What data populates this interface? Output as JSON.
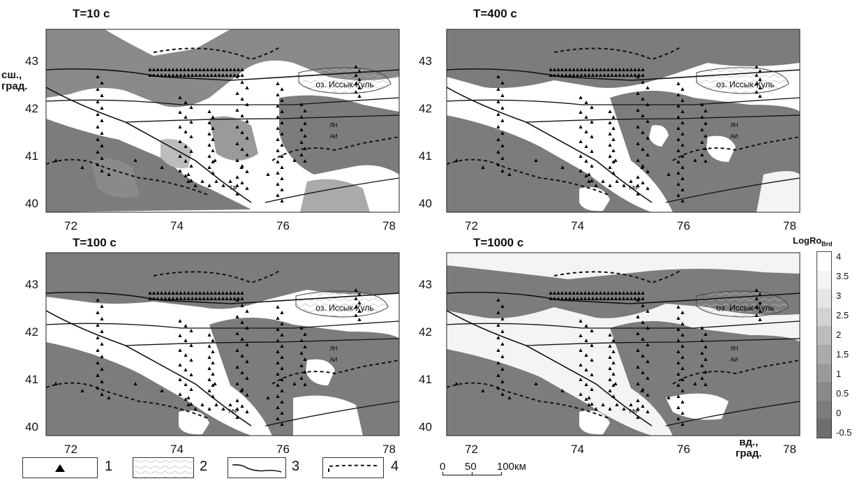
{
  "panels": [
    {
      "title": "T=10 c",
      "place_label": "ТФ"
    },
    {
      "title": "T=400 c",
      "place_label": "ТФР"
    },
    {
      "title": "T=100 c",
      "place_label": "ТФР"
    },
    {
      "title": "T=1000 c",
      "place_label": "ТФР"
    }
  ],
  "x_ticks": [
    "72",
    "74",
    "76",
    "78"
  ],
  "y_ticks": [
    "43",
    "42",
    "41",
    "40"
  ],
  "y_axis_label": [
    "сш.,",
    "град."
  ],
  "x_axis_label": [
    "вд.,",
    "град."
  ],
  "lake_label": "оз. Иссык-Куль",
  "fault_labels": [
    "ЛН",
    "АИ"
  ],
  "legend": [
    {
      "number": "1",
      "icon": "triangle-station"
    },
    {
      "number": "2",
      "icon": "wave-pattern"
    },
    {
      "number": "3",
      "icon": "solid-line"
    },
    {
      "number": "4",
      "icon": "dashed-line"
    }
  ],
  "scale_bar": {
    "labels": [
      "0",
      "50",
      "100км"
    ]
  },
  "colorbar": {
    "title": "LogRo",
    "title_sub": "Brd",
    "ticks": [
      "4",
      "3.5",
      "3",
      "2.5",
      "2",
      "1.5",
      "1",
      "0.5",
      "0",
      "-0.5"
    ],
    "colors": [
      "#6e6e6e",
      "#7c7c7c",
      "#8a8a8a",
      "#9a9a9a",
      "#aaaaaa",
      "#bcbcbc",
      "#d2d2d2",
      "#e6e6e6",
      "#f4f4f4",
      "#ffffff"
    ]
  }
}
